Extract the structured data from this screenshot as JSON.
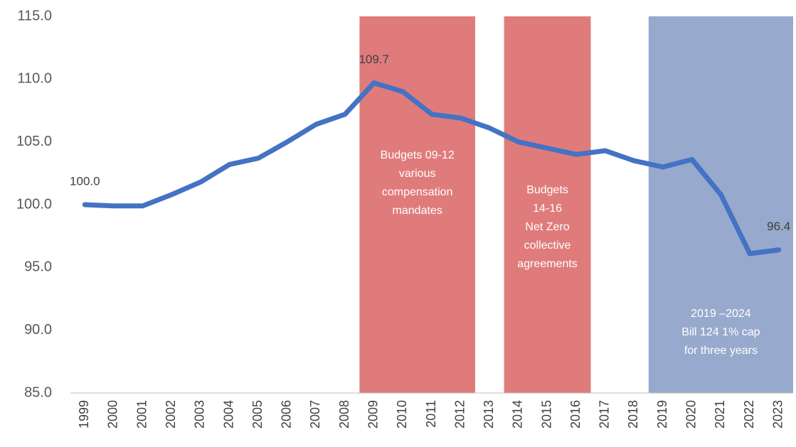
{
  "chart_data": {
    "type": "line",
    "categories": [
      "1999",
      "2000",
      "2001",
      "2002",
      "2003",
      "2004",
      "2005",
      "2006",
      "2007",
      "2008",
      "2009",
      "2010",
      "2011",
      "2012",
      "2013",
      "2014",
      "2015",
      "2016",
      "2017",
      "2018",
      "2019",
      "2020",
      "2021",
      "2022",
      "2023"
    ],
    "series": [
      {
        "color": "#4472c4",
        "values": [
          100.0,
          99.9,
          99.9,
          100.8,
          101.8,
          103.2,
          103.7,
          105.0,
          106.4,
          107.2,
          109.7,
          109.0,
          107.2,
          106.9,
          106.1,
          105.0,
          104.5,
          104.0,
          104.3,
          103.5,
          103.0,
          103.6,
          100.8,
          96.1,
          96.4
        ],
        "value_labels": [
          "100.0",
          null,
          null,
          null,
          null,
          null,
          null,
          null,
          null,
          null,
          "109.7",
          null,
          null,
          null,
          null,
          null,
          null,
          null,
          null,
          null,
          null,
          null,
          null,
          null,
          "96.4"
        ]
      }
    ],
    "ylim": [
      85,
      115
    ],
    "yticks": [
      {
        "value": 85,
        "label": "85.0"
      },
      {
        "value": 90,
        "label": "90.0"
      },
      {
        "value": 95,
        "label": "95.0"
      },
      {
        "value": 100,
        "label": "100.0"
      },
      {
        "value": 105,
        "label": "105.0"
      },
      {
        "value": 110,
        "label": "110.0"
      },
      {
        "value": 115,
        "label": "115.0"
      }
    ],
    "grid": false,
    "bands": [
      {
        "from": "2009",
        "to": "2012",
        "color": "#e07b7b",
        "text": [
          "Budgets 09-12",
          "various",
          "compensation",
          "mandates"
        ]
      },
      {
        "from": "2014",
        "to": "2016",
        "color": "#e07b7b",
        "text": [
          "Budgets",
          "14-16",
          "Net Zero",
          "collective",
          "agreements"
        ]
      },
      {
        "from": "2019",
        "to": "2023",
        "color": "#97a9cc",
        "text": [
          "2019 –2024",
          "Bill 124 1% cap",
          "for three years"
        ]
      }
    ]
  }
}
